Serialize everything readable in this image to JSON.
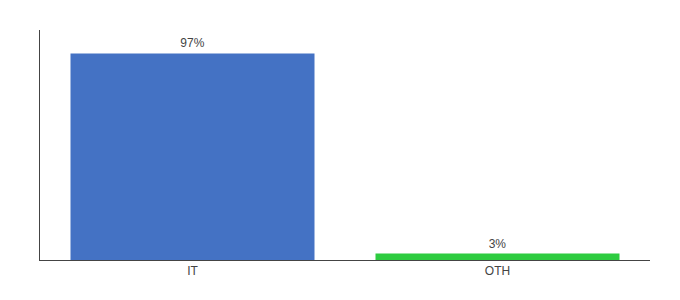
{
  "chart_data": {
    "type": "bar",
    "categories": [
      "IT",
      "OTH"
    ],
    "values": [
      97,
      3
    ],
    "value_labels": [
      "97%",
      "3%"
    ],
    "colors": [
      "#4472c4",
      "#2ecc40"
    ],
    "ylim": [
      0,
      108
    ],
    "grid": false,
    "data_labels": true,
    "tick_labels": "x"
  }
}
